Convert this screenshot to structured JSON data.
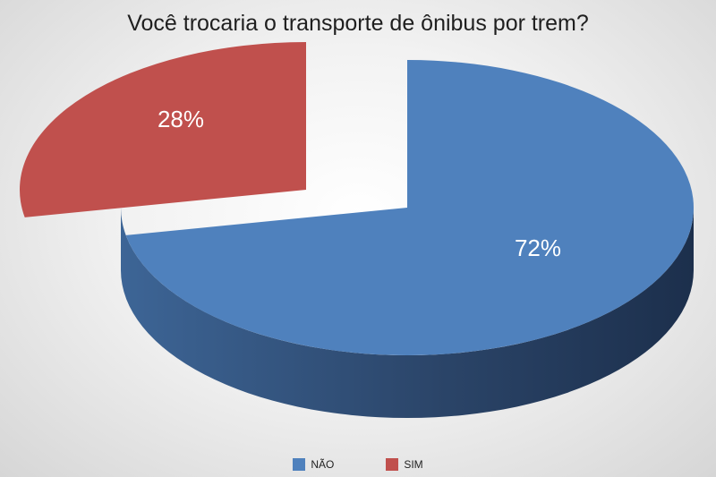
{
  "chart_data": {
    "type": "pie",
    "title": "Você trocaria o transporte de ônibus por trem?",
    "categories": [
      "NÃO",
      "SIM"
    ],
    "values": [
      72,
      28
    ],
    "labels": [
      "72%",
      "28%"
    ],
    "colors": [
      "#4f81bd",
      "#c0504d"
    ],
    "side_colors": [
      "#2b4569",
      "#4f1e1c"
    ],
    "legend_position": "bottom",
    "style": "3d-exploded"
  }
}
